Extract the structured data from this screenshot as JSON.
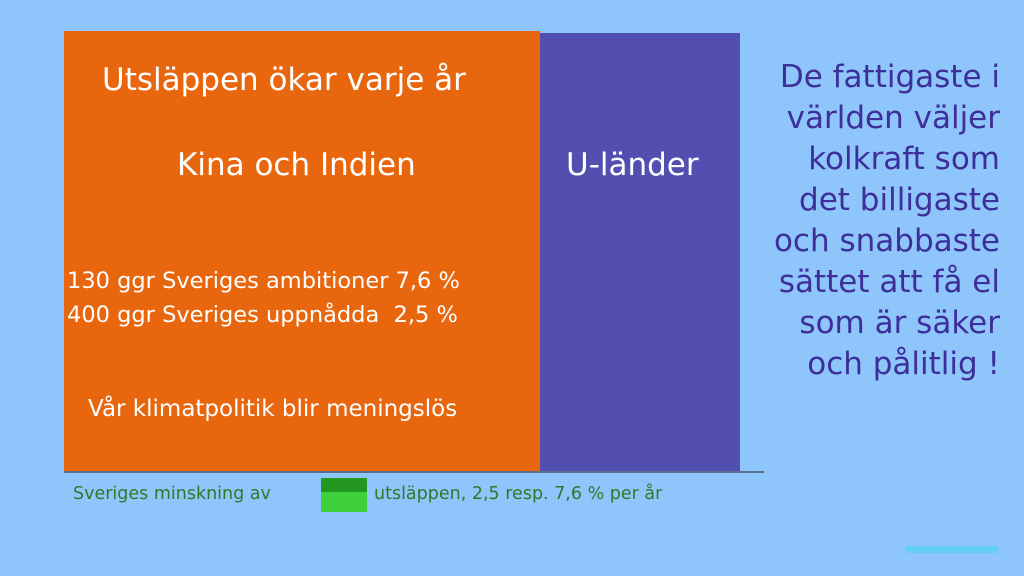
{
  "slide": {
    "title": "Utsläppen ökar varje år",
    "regions": {
      "china_india": "Kina och Indien",
      "developing": "U-länder"
    },
    "ratios": [
      "130 ggr Sveriges ambitioner 7,6 %",
      "400 ggr Sveriges uppnådda  2,5 %"
    ],
    "conclusion": "Vår klimatpolitik blir meningslös",
    "side_text_lines": [
      "De fattigaste i",
      "världen väljer",
      "kolkraft som",
      "det billigaste",
      "och snabbaste",
      "sättet att få el",
      "som är säker",
      "och pålitlig !"
    ],
    "footer": {
      "left": "Sveriges minskning av",
      "right": "utsläppen, 2,5 resp. 7,6 % per år"
    },
    "colors": {
      "background": "#8ec5fb",
      "china_india_block": "#e8660e",
      "developing_block": "#524fb1",
      "sweden_swatch_top": "#22961f",
      "sweden_swatch_bottom": "#3ecf3a",
      "side_text": "#3d2e9a",
      "footer_text": "#2d7a2b"
    }
  }
}
